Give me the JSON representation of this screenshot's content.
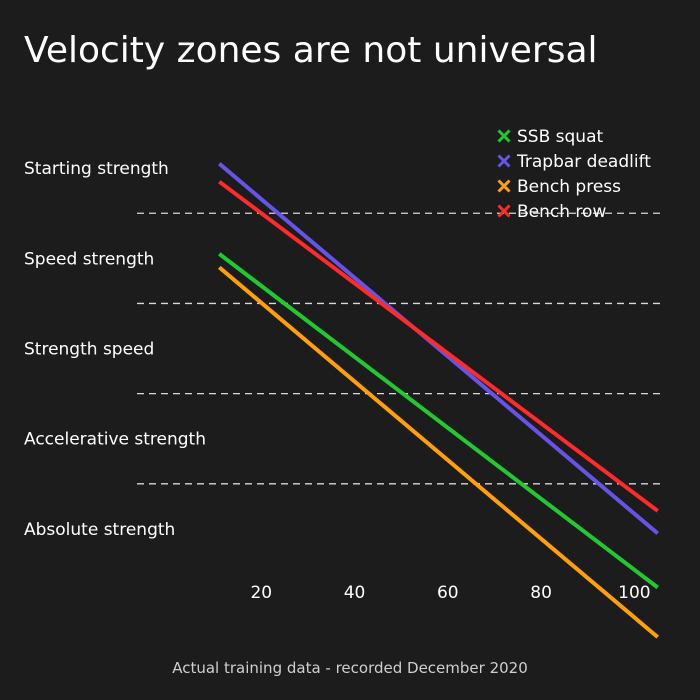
{
  "chart_data": {
    "type": "line",
    "title": "Velocity zones are not universal",
    "footer": "Actual training data - recorded December 2020",
    "xlabel": "",
    "ylabel": "",
    "x_ticks": [
      20,
      40,
      60,
      80,
      100
    ],
    "xlim": [
      0,
      110
    ],
    "ylim": [
      0,
      11
    ],
    "grid": false,
    "legend_position": "top-right",
    "zone_labels": [
      "Starting strength",
      "Speed strength",
      "Strength speed",
      "Accelerative strength",
      "Absolute strength"
    ],
    "zone_boundaries": [
      8,
      6,
      4,
      2
    ],
    "series": [
      {
        "name": "SSB squat",
        "color": "#22c832",
        "x": [
          11,
          105
        ],
        "y": [
          7.1,
          -0.3
        ]
      },
      {
        "name": "Trapbar deadlift",
        "color": "#6654e8",
        "x": [
          11,
          105
        ],
        "y": [
          9.1,
          0.9
        ]
      },
      {
        "name": "Bench press",
        "color": "#ff9f0a",
        "x": [
          11,
          105
        ],
        "y": [
          6.8,
          -1.4
        ]
      },
      {
        "name": "Bench row",
        "color": "#ff2a2a",
        "x": [
          11,
          105
        ],
        "y": [
          8.7,
          1.4
        ]
      }
    ]
  }
}
